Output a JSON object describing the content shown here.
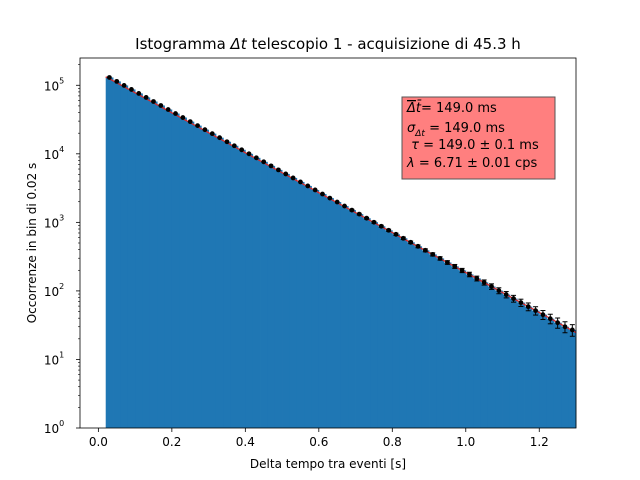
{
  "chart_data": {
    "type": "bar",
    "title_prefix": "Istogramma ",
    "title_symbol": "Δt",
    "title_suffix": " telescopio 1 - acquisizione di 45.3 h",
    "xlabel": "Delta tempo tra eventi [s]",
    "ylabel": "Occorrenze in bin di 0.02 s",
    "xlim": [
      -0.05,
      1.3
    ],
    "ylim": [
      1,
      250000
    ],
    "yscale": "log",
    "grid": false,
    "x_ticks": [
      0.0,
      0.2,
      0.4,
      0.6,
      0.8,
      1.0,
      1.2
    ],
    "x_tick_labels": [
      "0.0",
      "0.2",
      "0.4",
      "0.6",
      "0.8",
      "1.0",
      "1.2"
    ],
    "y_ticks": [
      1,
      10,
      100,
      1000,
      10000,
      100000
    ],
    "y_tick_labels": [
      {
        "base": "10",
        "exp": "0"
      },
      {
        "base": "10",
        "exp": "1"
      },
      {
        "base": "10",
        "exp": "2"
      },
      {
        "base": "10",
        "exp": "3"
      },
      {
        "base": "10",
        "exp": "4"
      },
      {
        "base": "10",
        "exp": "5"
      }
    ],
    "histogram": {
      "color": "#1f77b4",
      "bin_width": 0.02,
      "bin_start": 0.02,
      "counts": [
        130000,
        114000,
        99500,
        87000,
        76000,
        66500,
        58000,
        50700,
        44300,
        38700,
        33800,
        29500,
        25800,
        22500,
        19700,
        17200,
        15000,
        13100,
        11450,
        10000,
        8740,
        7640,
        6670,
        5830,
        5090,
        4450,
        3890,
        3400,
        2970,
        2590,
        2260,
        1980,
        1730,
        1510,
        1320,
        1150,
        1005,
        878,
        767,
        670,
        586,
        512,
        447,
        391,
        341,
        298,
        260,
        228,
        199,
        174,
        152,
        133,
        116,
        101,
        88.5,
        77.3,
        67.5,
        59,
        51.6,
        45,
        39.4,
        34.4,
        30,
        27
      ]
    },
    "data_points": {
      "color": "#000000",
      "x": [
        0.03,
        0.05,
        0.07,
        0.09,
        0.11,
        0.13,
        0.15,
        0.17,
        0.19,
        0.21,
        0.23,
        0.25,
        0.27,
        0.29,
        0.31,
        0.33,
        0.35,
        0.37,
        0.39,
        0.41,
        0.43,
        0.45,
        0.47,
        0.49,
        0.51,
        0.53,
        0.55,
        0.57,
        0.59,
        0.61,
        0.63,
        0.65,
        0.67,
        0.69,
        0.71,
        0.73,
        0.75,
        0.77,
        0.79,
        0.81,
        0.83,
        0.85,
        0.87,
        0.89,
        0.91,
        0.93,
        0.95,
        0.97,
        0.99,
        1.01,
        1.03,
        1.05,
        1.07,
        1.09,
        1.11,
        1.13,
        1.15,
        1.17,
        1.19,
        1.21,
        1.23,
        1.25,
        1.27,
        1.29
      ],
      "y": [
        130000,
        114000,
        99500,
        87000,
        76000,
        66500,
        58000,
        50700,
        44300,
        38700,
        33800,
        29500,
        25800,
        22500,
        19700,
        17200,
        15000,
        13100,
        11450,
        10000,
        8740,
        7640,
        6670,
        5830,
        5090,
        4450,
        3890,
        3400,
        2970,
        2590,
        2260,
        1980,
        1730,
        1510,
        1320,
        1150,
        1005,
        878,
        767,
        670,
        586,
        512,
        447,
        391,
        341,
        298,
        260,
        228,
        199,
        174,
        152,
        133,
        116,
        101,
        88.5,
        77.3,
        67.5,
        59,
        51.6,
        45,
        39.4,
        34.4,
        30,
        27
      ]
    },
    "fit_curve": {
      "color": "#d62728",
      "x_start": 0.02,
      "x_end": 1.3,
      "y_at_start": 133000,
      "tau": 0.149
    },
    "stat_box": {
      "bg_color": "#ff7f7f",
      "edge_color": "#555555",
      "placement": "top-right",
      "lines": [
        {
          "sym": "Δt̄",
          "sub": "",
          "text": "= 149.0 ms"
        },
        {
          "sym": "σ",
          "sub": "Δt",
          "text": " = 149.0 ms"
        },
        {
          "sym": " τ",
          "sub": "",
          "text": " = 149.0 ± 0.1 ms"
        },
        {
          "sym": "λ",
          "sub": "",
          "text": " = 6.71 ± 0.01 cps"
        }
      ]
    }
  }
}
